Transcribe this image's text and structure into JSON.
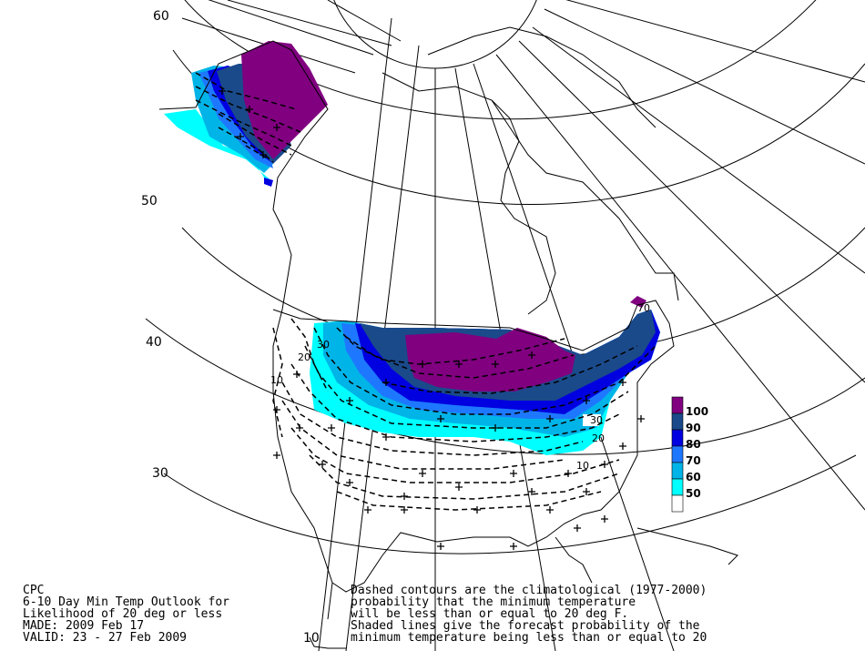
{
  "latitude_labels": [
    "60",
    "50",
    "40",
    "30",
    "10"
  ],
  "contour_labels": [
    "30",
    "20",
    "10",
    "70",
    "30",
    "20",
    "10"
  ],
  "legend": {
    "levels": [
      "100",
      "90",
      "80",
      "70",
      "60",
      "50"
    ],
    "colors": [
      "#800080",
      "#1a4a8a",
      "#0000e0",
      "#1e78ff",
      "#00b4e8",
      "#00ffff",
      "#ffffff"
    ]
  },
  "colors": {
    "p100": "#800080",
    "p90": "#1a4a8a",
    "p80": "#0000e0",
    "p70": "#1e78ff",
    "p60": "#00b4e8",
    "p50": "#00ffff"
  },
  "footer_left": {
    "line1": "CPC",
    "line2": "6-10 Day Min Temp Outlook for",
    "line3": "Likelihood of 20 deg or less",
    "line4": "MADE: 2009 Feb 17",
    "line5": "VALID: 23 - 27 Feb 2009"
  },
  "footer_right": {
    "line1": "Dashed contours are the climatological (1977-2000)",
    "line2": "probability that the minimum temperature",
    "line3": "will be less than or equal to 20 deg F.",
    "line4": "Shaded lines give the forecast probability of the",
    "line5": "minimum temperature being less than or equal to 20"
  }
}
